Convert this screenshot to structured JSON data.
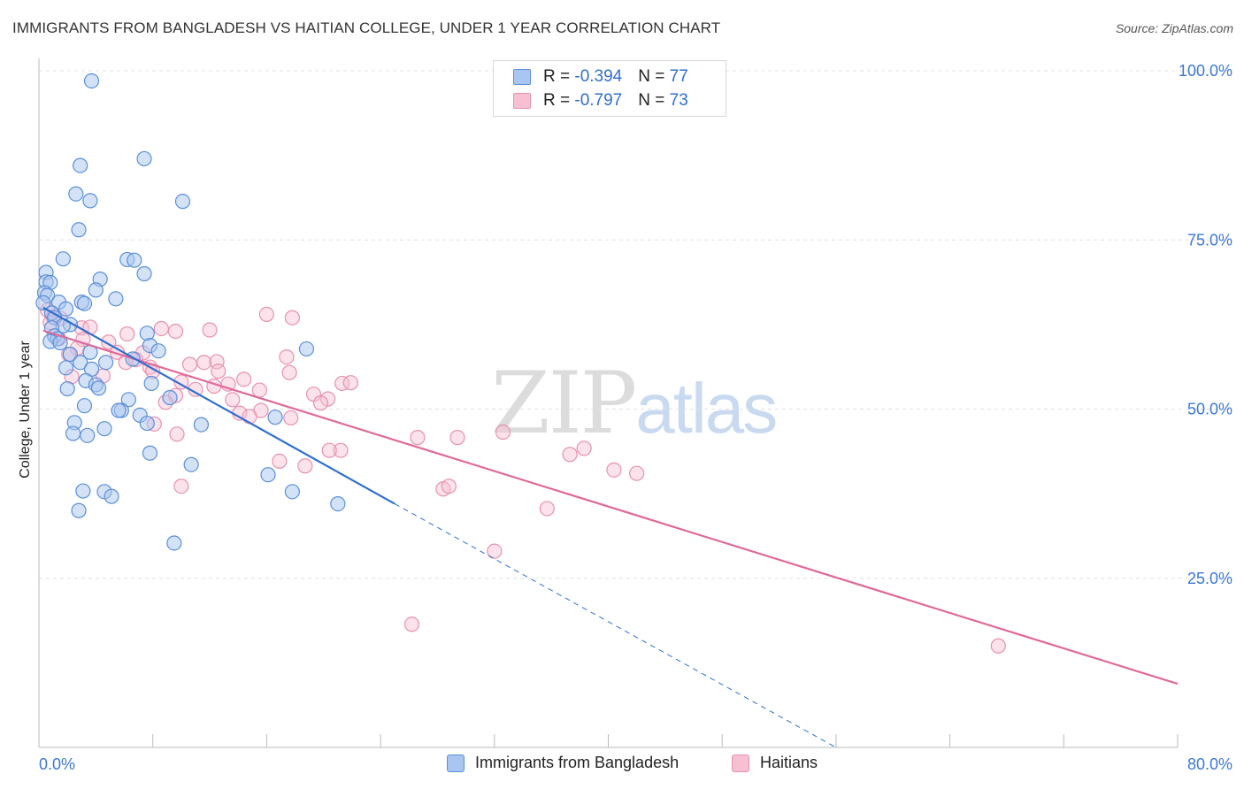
{
  "header": {
    "title": "IMMIGRANTS FROM BANGLADESH VS HAITIAN COLLEGE, UNDER 1 YEAR CORRELATION CHART",
    "source": "Source: ZipAtlas.com"
  },
  "watermark": {
    "zip": "ZIP",
    "atlas": "atlas"
  },
  "legend": {
    "rows": [
      {
        "r_label": "R = ",
        "r_value": "-0.394",
        "n_label": "N = ",
        "n_value": "77"
      },
      {
        "r_label": "R = ",
        "r_value": "-0.797",
        "n_label": "N = ",
        "n_value": "73"
      }
    ]
  },
  "bottom_legend": {
    "items": [
      {
        "label": "Immigrants from Bangladesh"
      },
      {
        "label": "Haitians"
      }
    ]
  },
  "colors": {
    "blue_fill": "#a9c6f0",
    "blue_stroke": "#5b8fdb",
    "blue_line": "#2f6fd0",
    "pink_fill": "#f7bfd2",
    "pink_stroke": "#e891b0",
    "pink_line": "#e0699a",
    "grid": "#e0e0e0",
    "axis_text": "#3a78d4"
  },
  "chart_data": {
    "type": "scatter",
    "title": "IMMIGRANTS FROM BANGLADESH VS HAITIAN COLLEGE, UNDER 1 YEAR CORRELATION CHART",
    "xlabel": "",
    "ylabel": "College, Under 1 year",
    "xlim": [
      0,
      80
    ],
    "ylim": [
      0,
      104
    ],
    "x_tick_labels": [
      "0.0%",
      "80.0%"
    ],
    "y_ticks": [
      25,
      50,
      75,
      100
    ],
    "y_tick_labels": [
      "25.0%",
      "50.0%",
      "75.0%",
      "100.0%"
    ],
    "grid": true,
    "legend_position": "top-center",
    "series": [
      {
        "name": "Immigrants from Bangladesh",
        "r": -0.394,
        "n": 77,
        "trend": {
          "x": [
            0.3,
            25,
            56
          ],
          "y": [
            65,
            36,
            0
          ]
        },
        "trend_solid_until_x": 25,
        "points": [
          [
            3.7,
            98.5
          ],
          [
            2.9,
            86
          ],
          [
            7.4,
            87
          ],
          [
            2.6,
            81.8
          ],
          [
            3.6,
            80.8
          ],
          [
            10.1,
            80.7
          ],
          [
            2.8,
            76.5
          ],
          [
            1.7,
            72.2
          ],
          [
            6.2,
            72.1
          ],
          [
            6.7,
            72
          ],
          [
            0.5,
            70.2
          ],
          [
            7.4,
            70
          ],
          [
            4.3,
            69.2
          ],
          [
            0.5,
            68.8
          ],
          [
            0.8,
            68.7
          ],
          [
            4.0,
            67.6
          ],
          [
            0.4,
            67.2
          ],
          [
            0.6,
            66.8
          ],
          [
            5.4,
            66.3
          ],
          [
            1.4,
            65.8
          ],
          [
            3.0,
            65.8
          ],
          [
            3.2,
            65.6
          ],
          [
            0.3,
            65.7
          ],
          [
            1.9,
            64.8
          ],
          [
            0.9,
            64.2
          ],
          [
            1.1,
            63.5
          ],
          [
            2.2,
            62.5
          ],
          [
            1.7,
            62.3
          ],
          [
            0.9,
            62
          ],
          [
            1.1,
            60.8
          ],
          [
            7.6,
            61.2
          ],
          [
            1.3,
            60.4
          ],
          [
            0.8,
            60
          ],
          [
            1.5,
            59.8
          ],
          [
            7.8,
            59.4
          ],
          [
            8.4,
            58.6
          ],
          [
            18.8,
            58.9
          ],
          [
            3.6,
            58.4
          ],
          [
            2.2,
            58.1
          ],
          [
            2.9,
            56.9
          ],
          [
            4.7,
            56.9
          ],
          [
            6.6,
            57.4
          ],
          [
            1.9,
            56.1
          ],
          [
            3.7,
            55.9
          ],
          [
            3.3,
            54.2
          ],
          [
            4.0,
            53.6
          ],
          [
            4.2,
            53.1
          ],
          [
            7.9,
            53.8
          ],
          [
            2.0,
            53
          ],
          [
            6.3,
            51.4
          ],
          [
            9.2,
            51.7
          ],
          [
            3.2,
            50.5
          ],
          [
            5.8,
            49.8
          ],
          [
            5.6,
            49.8
          ],
          [
            7.1,
            49.1
          ],
          [
            16.6,
            48.8
          ],
          [
            2.5,
            48
          ],
          [
            7.6,
            47.9
          ],
          [
            11.4,
            47.7
          ],
          [
            4.6,
            47.1
          ],
          [
            2.4,
            46.4
          ],
          [
            3.4,
            46.1
          ],
          [
            7.8,
            43.5
          ],
          [
            10.7,
            41.8
          ],
          [
            16.1,
            40.3
          ],
          [
            3.1,
            37.9
          ],
          [
            4.6,
            37.8
          ],
          [
            5.1,
            37.1
          ],
          [
            17.8,
            37.8
          ],
          [
            21.0,
            36
          ],
          [
            2.8,
            35
          ],
          [
            9.5,
            30.2
          ]
        ]
      },
      {
        "name": "Haitians",
        "r": -0.797,
        "n": 73,
        "trend": {
          "x": [
            0.3,
            80
          ],
          "y": [
            61.6,
            9.4
          ]
        },
        "points": [
          [
            0.6,
            64.6
          ],
          [
            1.0,
            63.6
          ],
          [
            1.5,
            63.4
          ],
          [
            16.0,
            64
          ],
          [
            17.8,
            63.5
          ],
          [
            0.8,
            62.8
          ],
          [
            3.0,
            62
          ],
          [
            3.6,
            62.1
          ],
          [
            8.6,
            61.9
          ],
          [
            9.6,
            61.5
          ],
          [
            12.0,
            61.7
          ],
          [
            6.2,
            61.1
          ],
          [
            3.1,
            60.3
          ],
          [
            1.4,
            60.4
          ],
          [
            4.9,
            59.9
          ],
          [
            2.7,
            59
          ],
          [
            5.5,
            58.4
          ],
          [
            7.3,
            58.3
          ],
          [
            2.1,
            58.1
          ],
          [
            17.4,
            57.7
          ],
          [
            6.8,
            57.3
          ],
          [
            6.1,
            56.9
          ],
          [
            11.6,
            56.9
          ],
          [
            10.6,
            56.6
          ],
          [
            12.5,
            57
          ],
          [
            7.8,
            56.2
          ],
          [
            8.0,
            55.6
          ],
          [
            12.6,
            55.6
          ],
          [
            17.6,
            55.4
          ],
          [
            4.5,
            54.9
          ],
          [
            2.3,
            54.8
          ],
          [
            14.4,
            54.4
          ],
          [
            10.0,
            54
          ],
          [
            13.3,
            53.7
          ],
          [
            21.3,
            53.8
          ],
          [
            21.9,
            53.9
          ],
          [
            12.3,
            53.4
          ],
          [
            11.0,
            52.9
          ],
          [
            15.5,
            52.8
          ],
          [
            9.6,
            52
          ],
          [
            19.3,
            52.2
          ],
          [
            20.3,
            51.5
          ],
          [
            13.6,
            51.4
          ],
          [
            8.9,
            51
          ],
          [
            19.8,
            50.9
          ],
          [
            15.6,
            49.8
          ],
          [
            14.1,
            49.4
          ],
          [
            14.8,
            48.9
          ],
          [
            17.7,
            48.7
          ],
          [
            8.1,
            47.8
          ],
          [
            32.6,
            46.6
          ],
          [
            26.6,
            45.8
          ],
          [
            29.4,
            45.8
          ],
          [
            9.7,
            46.3
          ],
          [
            38.3,
            44.2
          ],
          [
            21.2,
            43.9
          ],
          [
            20.4,
            43.9
          ],
          [
            37.3,
            43.3
          ],
          [
            16.9,
            42.3
          ],
          [
            18.7,
            41.6
          ],
          [
            40.4,
            41
          ],
          [
            42.0,
            40.5
          ],
          [
            10.0,
            38.6
          ],
          [
            28.4,
            38.2
          ],
          [
            28.8,
            38.6
          ],
          [
            35.7,
            35.3
          ],
          [
            32.0,
            29
          ],
          [
            26.2,
            18.2
          ],
          [
            67.4,
            15
          ]
        ]
      }
    ]
  }
}
